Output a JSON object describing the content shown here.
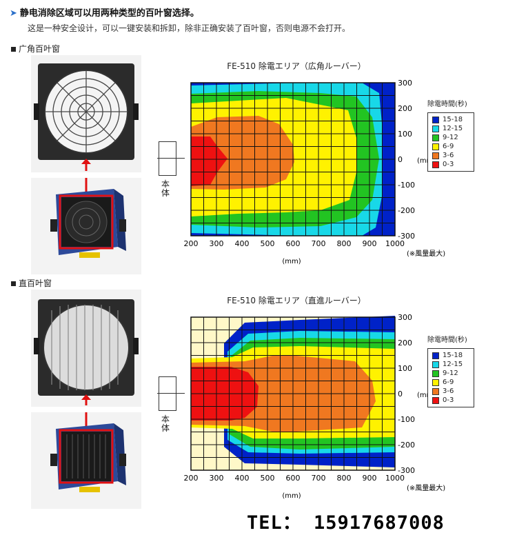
{
  "header": {
    "title": "静电消除区域可以用两种类型的百叶窗选择。",
    "description": "这是一种安全设计，可以一键安装和拆卸，除非正确安装了百叶窗，否则电源不会打开。"
  },
  "sections": [
    {
      "label": "广角百叶窗",
      "photo_top": "wide-angle-louver-photo",
      "photo_bottom": "ionizer-with-wide-louver-photo"
    },
    {
      "label": "直百叶窗",
      "photo_top": "straight-louver-photo",
      "photo_bottom": "ionizer-with-straight-louver-photo"
    }
  ],
  "body_label": "本体",
  "legend": {
    "title": "除電時間(秒)",
    "entries": [
      {
        "label": "15-18",
        "color": "#0022c8"
      },
      {
        "label": "12-15",
        "color": "#18d8e8"
      },
      {
        "label": "9-12",
        "color": "#22c422"
      },
      {
        "label": "6-9",
        "color": "#fff200"
      },
      {
        "label": "3-6",
        "color": "#f07820"
      },
      {
        "label": "0-3",
        "color": "#ee1111"
      }
    ]
  },
  "chart_data": [
    {
      "type": "heatmap",
      "title": "FE-510 除電エリア（広角ルーバー）",
      "xlabel": "(mm)",
      "ylabel": "(mm)",
      "x_ticks": [
        "200",
        "300",
        "400",
        "500",
        "600",
        "700",
        "800",
        "900",
        "1000"
      ],
      "y_ticks": [
        "300",
        "200",
        "100",
        "0",
        "-100",
        "-200",
        "-300"
      ],
      "xlim": [
        200,
        1000
      ],
      "ylim": [
        -300,
        300
      ],
      "note": "(※風量最大)",
      "grid": true,
      "legend_position": "right"
    },
    {
      "type": "heatmap",
      "title": "FE-510 除電エリア（直進ルーバー）",
      "xlabel": "(mm)",
      "ylabel": "(mm)",
      "x_ticks": [
        "200",
        "300",
        "400",
        "500",
        "600",
        "700",
        "800",
        "900",
        "1000"
      ],
      "y_ticks": [
        "300",
        "200",
        "100",
        "0",
        "-100",
        "-200",
        "-300"
      ],
      "xlim": [
        200,
        1000
      ],
      "ylim": [
        -300,
        300
      ],
      "note": "(※風量最大)",
      "grid": true,
      "legend_position": "right"
    }
  ],
  "contact": {
    "tel": "TEL： 15917687008"
  }
}
